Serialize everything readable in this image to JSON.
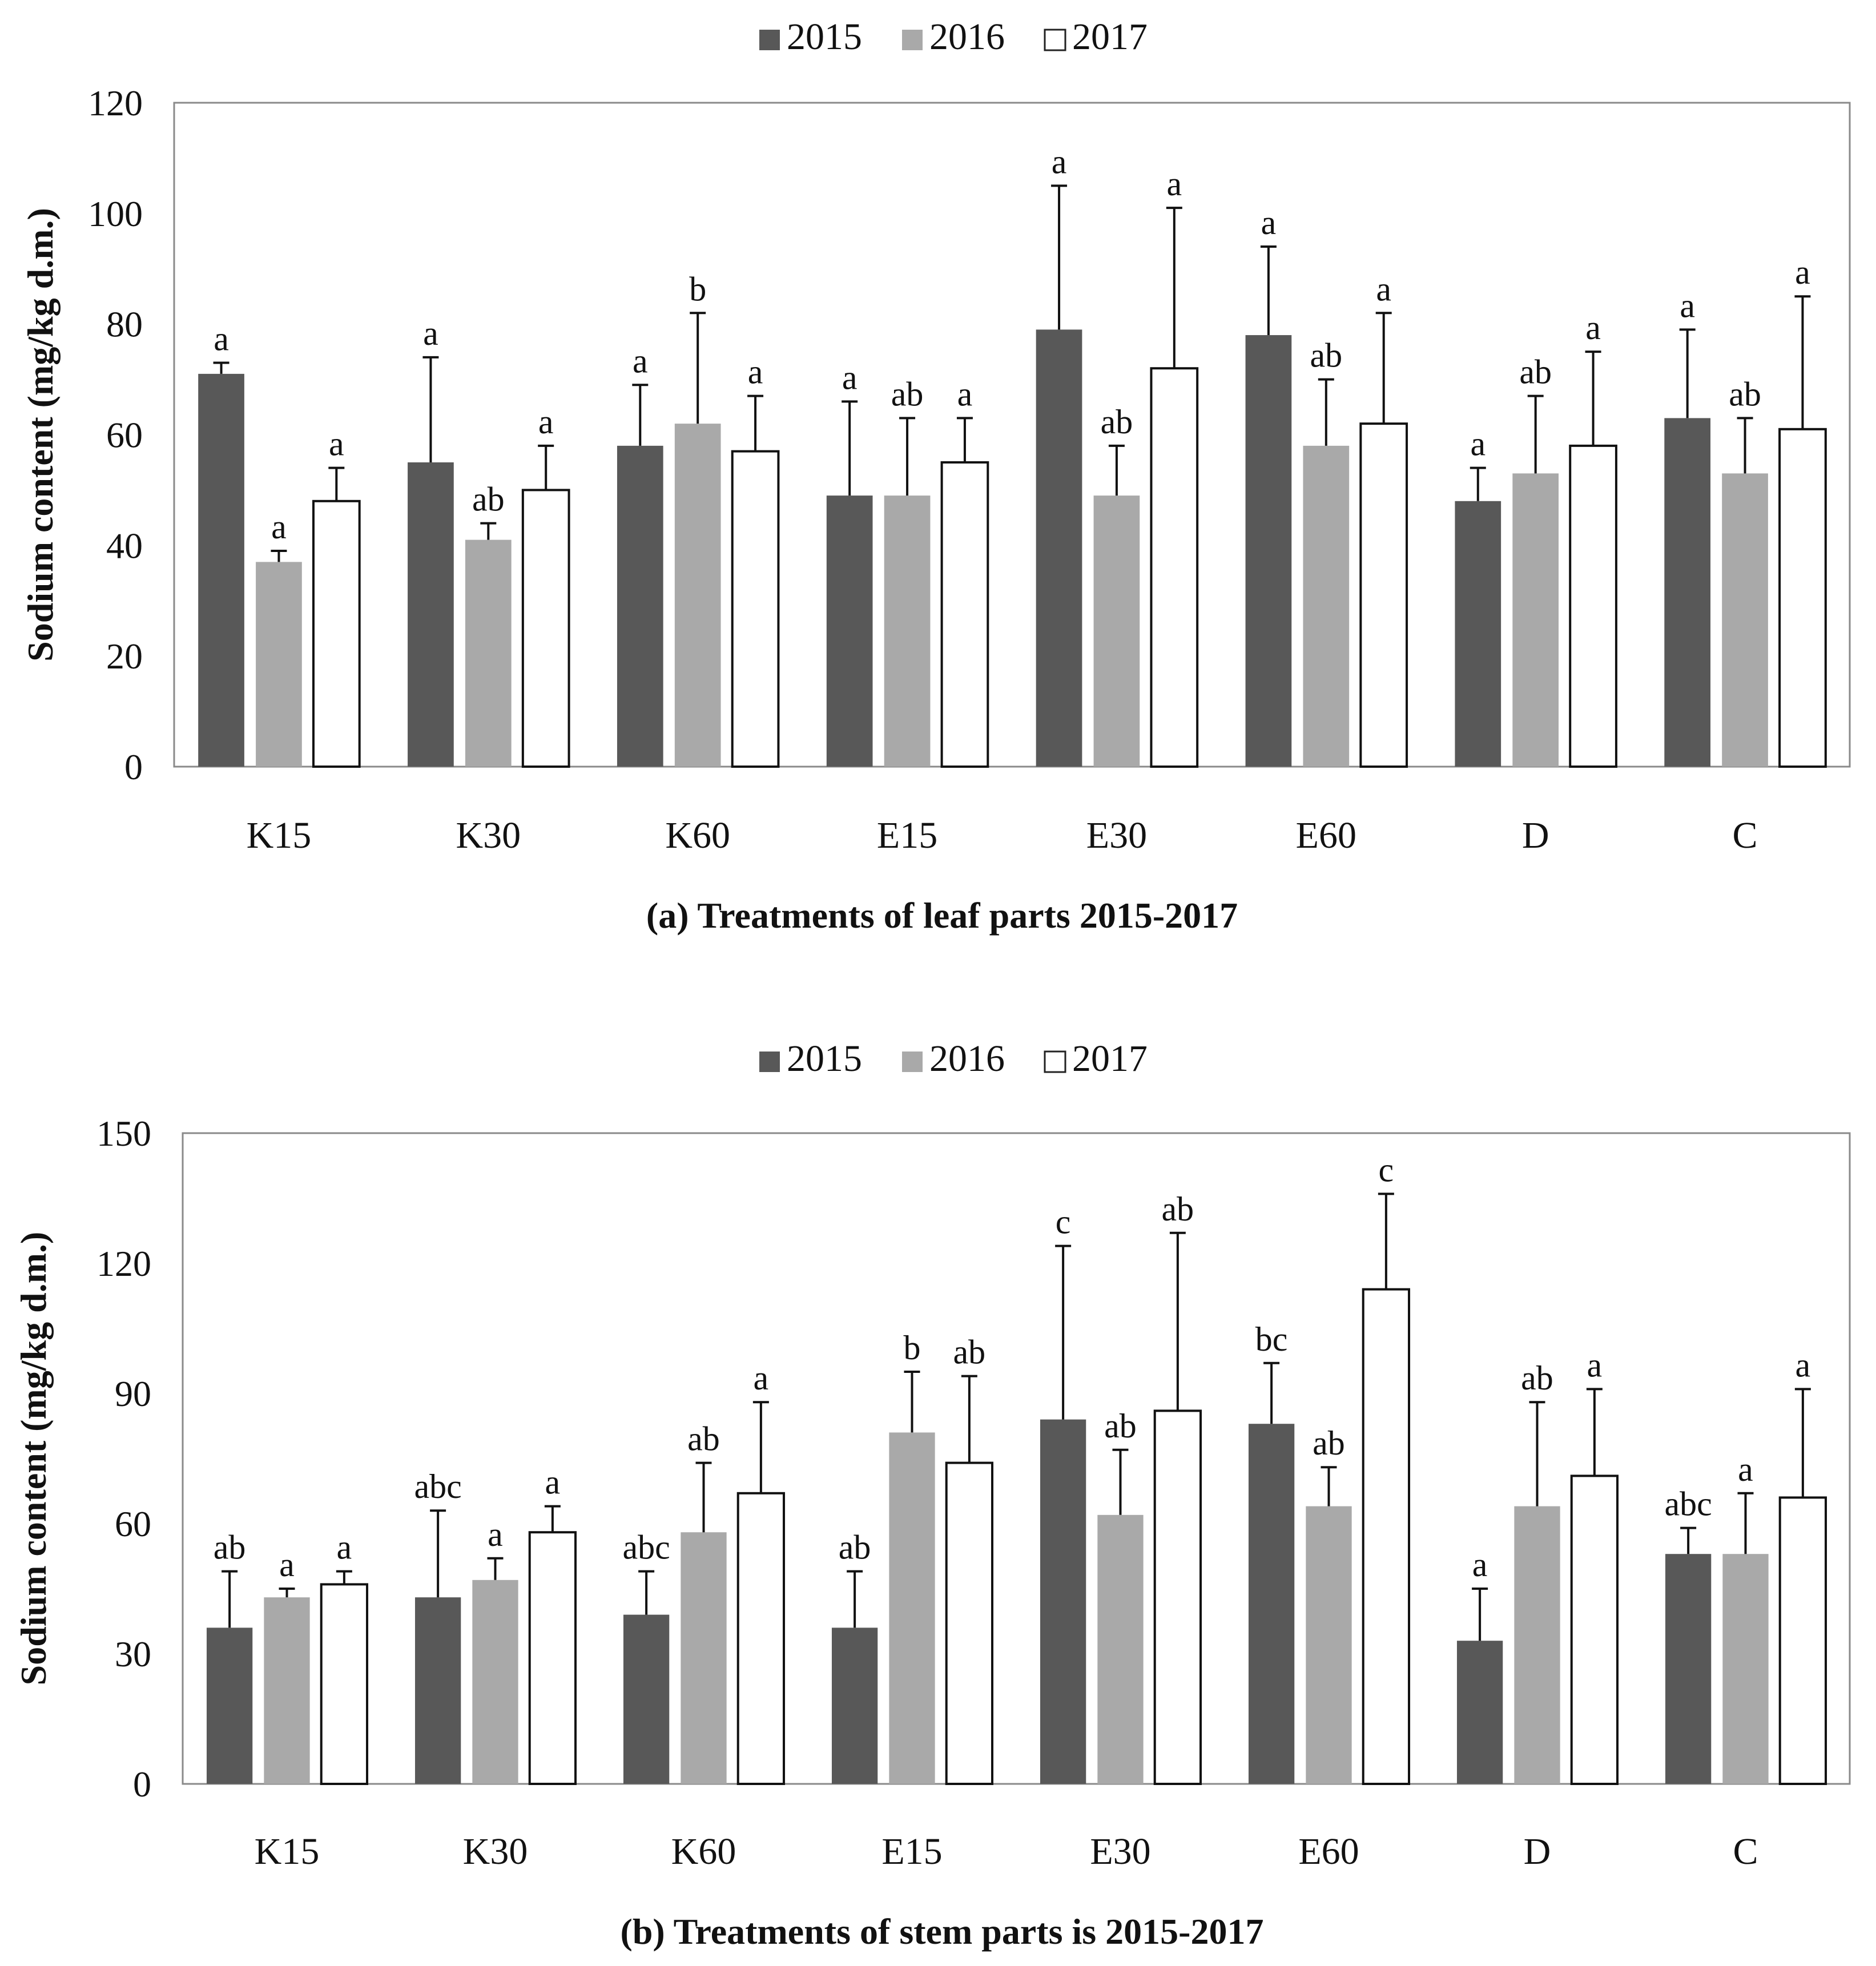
{
  "colors": {
    "s2015": "#585858",
    "s2016": "#a9a9a9",
    "s2017": "#ffffff",
    "axis": "#8a8a8a",
    "text": "#111111"
  },
  "chart_data": [
    {
      "type": "bar",
      "panel": "a",
      "title": "(a) Treatments of leaf parts 2015-2017",
      "xlabel": "(a) Treatments of leaf parts 2015-2017",
      "ylabel": "Sodium content (mg/kg d.m.)",
      "ylim": [
        0,
        120
      ],
      "yticks": [
        "0",
        "20",
        "40",
        "60",
        "80",
        "100",
        "120"
      ],
      "legend": [
        "2015",
        "2016",
        "2017"
      ],
      "legend_position": "top-center",
      "categories": [
        "K15",
        "K30",
        "K60",
        "E15",
        "E30",
        "E60",
        "D",
        "C"
      ],
      "series": [
        {
          "name": "2015",
          "values": [
            71,
            55,
            58,
            49,
            79,
            78,
            48,
            63
          ],
          "err": [
            2,
            19,
            11,
            17,
            26,
            16,
            6,
            16
          ],
          "letters": [
            "a",
            "a",
            "a",
            "a",
            "a",
            "a",
            "a",
            "a"
          ]
        },
        {
          "name": "2016",
          "values": [
            37,
            41,
            62,
            49,
            49,
            58,
            53,
            53
          ],
          "err": [
            2,
            3,
            20,
            14,
            9,
            12,
            14,
            10
          ],
          "letters": [
            "a",
            "ab",
            "b",
            "ab",
            "ab",
            "ab",
            "ab",
            "ab"
          ]
        },
        {
          "name": "2017",
          "values": [
            48,
            50,
            57,
            55,
            72,
            62,
            58,
            61
          ],
          "err": [
            6,
            8,
            10,
            8,
            29,
            20,
            17,
            24
          ],
          "letters": [
            "a",
            "a",
            "a",
            "a",
            "a",
            "a",
            "a",
            "a"
          ]
        }
      ]
    },
    {
      "type": "bar",
      "panel": "b",
      "title": "(b) Treatments of stem parts is 2015-2017",
      "xlabel": "(b) Treatments of stem parts is 2015-2017",
      "ylabel": "Sodium content (mg/kg d.m.)",
      "ylim": [
        0,
        150
      ],
      "yticks": [
        "0",
        "30",
        "60",
        "90",
        "120",
        "150"
      ],
      "legend": [
        "2015",
        "2016",
        "2017"
      ],
      "legend_position": "top-center",
      "categories": [
        "K15",
        "K30",
        "K60",
        "E15",
        "E30",
        "E60",
        "D",
        "C"
      ],
      "series": [
        {
          "name": "2015",
          "values": [
            36,
            43,
            39,
            36,
            84,
            83,
            33,
            53
          ],
          "err": [
            13,
            20,
            10,
            13,
            40,
            14,
            12,
            6
          ],
          "letters": [
            "ab",
            "abc",
            "abc",
            "ab",
            "c",
            "bc",
            "a",
            "abc"
          ]
        },
        {
          "name": "2016",
          "values": [
            43,
            47,
            58,
            81,
            62,
            64,
            64,
            53
          ],
          "err": [
            2,
            5,
            16,
            14,
            15,
            9,
            24,
            14
          ],
          "letters": [
            "a",
            "a",
            "ab",
            "b",
            "ab",
            "ab",
            "ab",
            "a"
          ]
        },
        {
          "name": "2017",
          "values": [
            46,
            58,
            67,
            74,
            86,
            114,
            71,
            66
          ],
          "err": [
            3,
            6,
            21,
            20,
            41,
            22,
            20,
            25
          ],
          "letters": [
            "a",
            "a",
            "a",
            "ab",
            "ab",
            "c",
            "a",
            "a"
          ]
        }
      ]
    }
  ]
}
